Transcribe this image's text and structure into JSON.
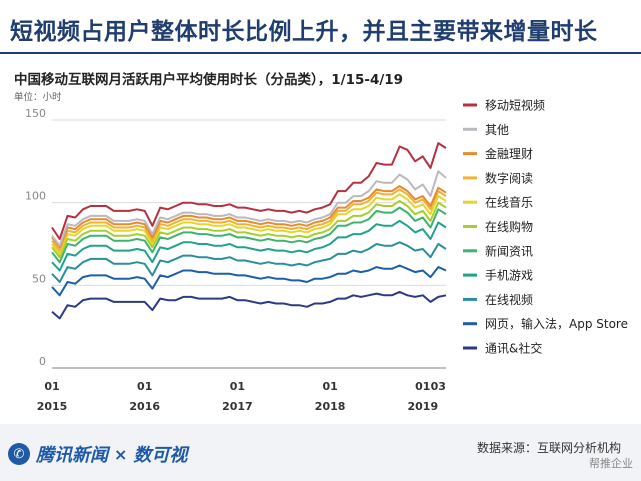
{
  "headline": "短视频占用户整体时长比例上升，并且主要带来增量时长",
  "chart_title": "中国移动互联网月活跃用户平均使用时长（分品类），1/15-4/19",
  "unit_label": "单位：小时",
  "source": "数据来源：互联网分析机构",
  "watermark": "帮推企业",
  "brand": {
    "name": "腾讯新闻",
    "separator": "×",
    "partner": "数可视"
  },
  "colors": {
    "headline": "#1f3d6e",
    "grid": "#dcdcdc"
  },
  "chart_data": {
    "type": "area",
    "title": "中国移动互联网月活跃用户平均使用时长（分品类），1/15-4/19",
    "ylabel": "单位：小时",
    "ylim": [
      0,
      150
    ],
    "yticks": [
      0,
      50,
      100,
      150
    ],
    "x_start": "2015-01",
    "x_end": "2019-04",
    "x_tick_labels": [
      {
        "month": "2015-01",
        "top": "01",
        "bottom": "2015"
      },
      {
        "month": "2016-01",
        "top": "01",
        "bottom": "2016"
      },
      {
        "month": "2017-01",
        "top": "01",
        "bottom": "2017"
      },
      {
        "month": "2018-01",
        "top": "01",
        "bottom": "2018"
      },
      {
        "month": "2019-01",
        "top": "01",
        "bottom": "2019"
      },
      {
        "month": "2019-03",
        "top": "03",
        "bottom": ""
      }
    ],
    "series": [
      {
        "name": "通讯&社交",
        "color": "#2b3a87",
        "values": [
          34,
          30,
          38,
          37,
          41,
          42,
          42,
          42,
          40,
          40,
          40,
          40,
          40,
          35,
          42,
          41,
          41,
          43,
          43,
          42,
          42,
          42,
          42,
          43,
          41,
          41,
          40,
          39,
          40,
          39,
          39,
          38,
          38,
          37,
          39,
          39,
          40,
          42,
          42,
          44,
          43,
          44,
          45,
          44,
          44,
          46,
          44,
          43,
          44,
          40,
          43,
          44
        ]
      },
      {
        "name": "网页，输入法，App Store",
        "color": "#1e5ea8",
        "values": [
          49,
          44,
          52,
          51,
          55,
          56,
          56,
          56,
          54,
          54,
          54,
          55,
          54,
          48,
          56,
          55,
          57,
          59,
          59,
          58,
          58,
          57,
          57,
          57,
          56,
          56,
          55,
          54,
          55,
          54,
          54,
          53,
          53,
          52,
          54,
          54,
          55,
          57,
          57,
          59,
          58,
          59,
          61,
          60,
          60,
          62,
          60,
          58,
          59,
          55,
          61,
          59
        ]
      },
      {
        "name": "在线视频",
        "color": "#2a8f9c",
        "values": [
          57,
          52,
          61,
          60,
          64,
          66,
          66,
          66,
          63,
          63,
          63,
          64,
          63,
          56,
          65,
          64,
          66,
          68,
          68,
          67,
          67,
          66,
          66,
          67,
          65,
          65,
          64,
          63,
          64,
          63,
          63,
          62,
          63,
          62,
          64,
          65,
          66,
          69,
          69,
          71,
          70,
          72,
          75,
          74,
          74,
          76,
          74,
          71,
          72,
          67,
          75,
          72
        ]
      },
      {
        "name": "手机游戏",
        "color": "#1fa38c",
        "values": [
          64,
          59,
          69,
          68,
          72,
          74,
          74,
          74,
          71,
          71,
          71,
          72,
          71,
          64,
          73,
          72,
          74,
          76,
          76,
          75,
          75,
          74,
          74,
          75,
          73,
          73,
          72,
          71,
          72,
          71,
          71,
          70,
          71,
          70,
          72,
          73,
          75,
          79,
          79,
          81,
          81,
          83,
          87,
          86,
          86,
          89,
          86,
          82,
          84,
          78,
          88,
          85
        ]
      },
      {
        "name": "新闻资讯",
        "color": "#3fb36e",
        "values": [
          70,
          64,
          75,
          74,
          78,
          80,
          80,
          80,
          77,
          77,
          77,
          78,
          77,
          70,
          79,
          78,
          80,
          82,
          82,
          81,
          81,
          80,
          80,
          81,
          79,
          79,
          78,
          77,
          78,
          77,
          77,
          76,
          77,
          76,
          78,
          79,
          81,
          86,
          86,
          88,
          88,
          90,
          95,
          94,
          94,
          97,
          94,
          89,
          91,
          85,
          96,
          93
        ]
      },
      {
        "name": "在线购物",
        "color": "#a6cf2e",
        "values": [
          73,
          67,
          78,
          77,
          81,
          83,
          83,
          83,
          80,
          80,
          80,
          81,
          80,
          73,
          82,
          81,
          83,
          85,
          85,
          84,
          84,
          83,
          83,
          84,
          82,
          82,
          81,
          80,
          81,
          80,
          80,
          79,
          80,
          79,
          81,
          82,
          84,
          89,
          89,
          92,
          92,
          94,
          99,
          98,
          98,
          101,
          98,
          93,
          95,
          89,
          100,
          97
        ]
      },
      {
        "name": "在线音乐",
        "color": "#e6d52a",
        "values": [
          75,
          69,
          81,
          80,
          84,
          86,
          86,
          86,
          83,
          83,
          83,
          84,
          83,
          75,
          85,
          84,
          86,
          88,
          88,
          87,
          87,
          86,
          86,
          87,
          85,
          85,
          84,
          83,
          84,
          83,
          83,
          82,
          83,
          82,
          84,
          85,
          87,
          93,
          93,
          96,
          96,
          98,
          103,
          102,
          102,
          105,
          102,
          97,
          99,
          93,
          104,
          101
        ]
      },
      {
        "name": "数字阅读",
        "color": "#f2b134",
        "values": [
          77,
          71,
          83,
          82,
          86,
          88,
          88,
          88,
          85,
          85,
          85,
          86,
          85,
          77,
          87,
          86,
          88,
          90,
          90,
          89,
          89,
          88,
          88,
          89,
          87,
          87,
          86,
          85,
          86,
          85,
          85,
          84,
          85,
          84,
          86,
          87,
          89,
          95,
          95,
          99,
          99,
          101,
          106,
          105,
          105,
          108,
          105,
          100,
          102,
          96,
          107,
          104
        ]
      },
      {
        "name": "金融理财",
        "color": "#e88a2e",
        "values": [
          79,
          73,
          85,
          84,
          88,
          90,
          90,
          90,
          87,
          87,
          87,
          88,
          87,
          79,
          89,
          88,
          90,
          92,
          92,
          91,
          91,
          90,
          90,
          91,
          89,
          89,
          88,
          87,
          88,
          87,
          87,
          86,
          87,
          86,
          88,
          89,
          91,
          97,
          97,
          101,
          101,
          103,
          108,
          107,
          107,
          110,
          107,
          102,
          104,
          98,
          109,
          106
        ]
      },
      {
        "name": "其他",
        "color": "#b9b9bf",
        "values": [
          80,
          74,
          87,
          86,
          90,
          92,
          92,
          92,
          89,
          89,
          89,
          90,
          89,
          81,
          91,
          90,
          92,
          94,
          94,
          93,
          93,
          92,
          92,
          93,
          91,
          91,
          90,
          89,
          90,
          89,
          89,
          88,
          89,
          88,
          90,
          91,
          93,
          100,
          100,
          104,
          104,
          107,
          113,
          112,
          112,
          117,
          114,
          108,
          111,
          104,
          119,
          115
        ]
      },
      {
        "name": "移动短视频",
        "color": "#b7303e",
        "values": [
          85,
          78,
          92,
          91,
          96,
          98,
          98,
          98,
          95,
          95,
          95,
          96,
          95,
          86,
          97,
          96,
          98,
          100,
          100,
          99,
          99,
          98,
          98,
          99,
          97,
          97,
          96,
          95,
          96,
          95,
          95,
          94,
          95,
          94,
          96,
          97,
          99,
          107,
          107,
          112,
          112,
          116,
          124,
          123,
          123,
          134,
          132,
          125,
          128,
          121,
          136,
          133
        ]
      }
    ],
    "legend_position": "right",
    "grid": true
  }
}
